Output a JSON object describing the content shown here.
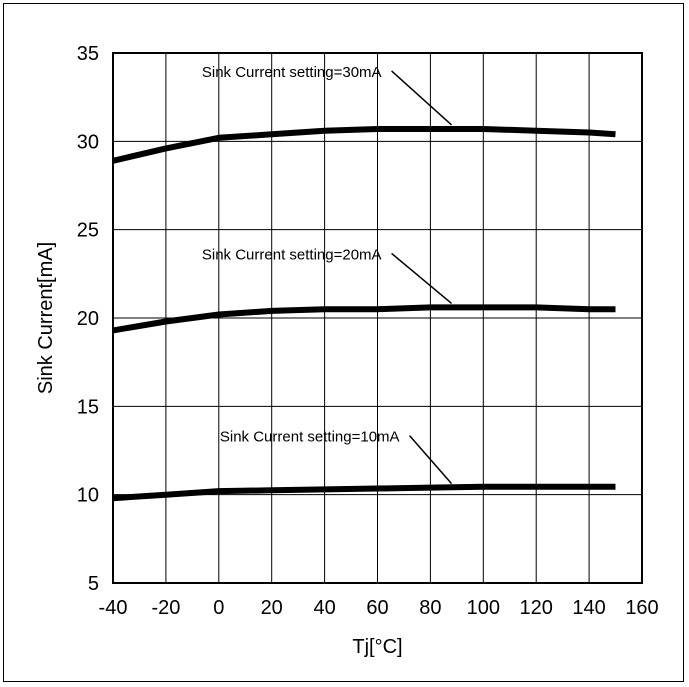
{
  "chart_data": {
    "type": "line",
    "xlabel": "Tj[°C]",
    "ylabel": "Sink Current[mA]",
    "xlim": [
      -40,
      160
    ],
    "ylim": [
      5,
      35
    ],
    "xticks": [
      -40,
      -20,
      0,
      20,
      40,
      60,
      80,
      100,
      120,
      140,
      160
    ],
    "yticks": [
      5,
      10,
      15,
      20,
      25,
      30,
      35
    ],
    "grid": true,
    "legend": "none",
    "line_color": "#000000",
    "series": [
      {
        "x": [
          -40,
          -20,
          0,
          20,
          40,
          60,
          80,
          100,
          120,
          140,
          150
        ],
        "y": [
          28.9,
          29.6,
          30.2,
          30.4,
          30.6,
          30.7,
          30.7,
          30.7,
          30.6,
          30.5,
          30.4
        ]
      },
      {
        "x": [
          -40,
          -20,
          0,
          20,
          40,
          60,
          80,
          100,
          120,
          140,
          150
        ],
        "y": [
          19.3,
          19.8,
          20.2,
          20.4,
          20.5,
          20.5,
          20.6,
          20.6,
          20.6,
          20.5,
          20.5
        ]
      },
      {
        "x": [
          -40,
          -20,
          0,
          20,
          40,
          60,
          80,
          100,
          120,
          140,
          150
        ],
        "y": [
          9.8,
          10.0,
          10.2,
          10.25,
          10.3,
          10.35,
          10.4,
          10.45,
          10.45,
          10.45,
          10.45
        ]
      }
    ],
    "annotations": [
      {
        "text": "Sink Current setting=30mA",
        "x": 88,
        "y": 30.7
      },
      {
        "text": "Sink Current setting=20mA",
        "x": 88,
        "y": 20.6
      },
      {
        "text": "Sink Current setting=10mA",
        "x": 88,
        "y": 10.4
      }
    ]
  }
}
